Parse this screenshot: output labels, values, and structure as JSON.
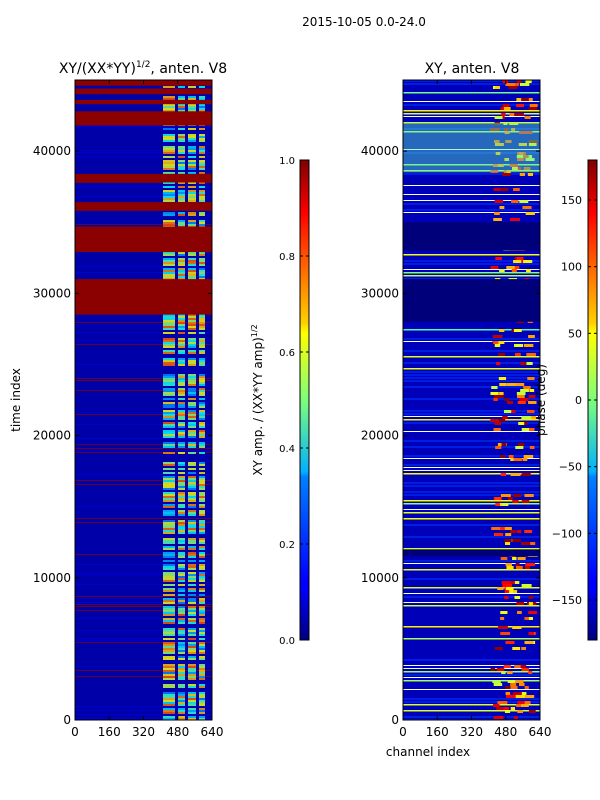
{
  "figure": {
    "suptitle": "2015-10-05 0.0-24.0"
  },
  "chart_data": [
    {
      "type": "heatmap",
      "title_base": "XY/(XX*YY)",
      "title_exp": "1/2",
      "title_suffix": ", anten. V8",
      "xlabel": "",
      "ylabel": "time index",
      "xlim": [
        0,
        640
      ],
      "ylim": [
        0,
        45000
      ],
      "xticks": [
        0,
        160,
        320,
        480,
        640
      ],
      "yticks": [
        0,
        10000,
        20000,
        30000,
        40000
      ],
      "colorbar": {
        "label_base": "XY amp. / (XX*YY amp)",
        "label_exp": "1/2",
        "range": [
          0.0,
          1.0
        ],
        "ticks": [
          "0.0",
          "0.2",
          "0.4",
          "0.6",
          "0.8",
          "1.0"
        ]
      }
    },
    {
      "type": "heatmap",
      "title": "XY, anten. V8",
      "xlabel": "channel index",
      "ylabel": "",
      "xlim": [
        0,
        640
      ],
      "ylim": [
        0,
        45000
      ],
      "xticks": [
        0,
        160,
        320,
        480,
        640
      ],
      "yticks": [
        0,
        10000,
        20000,
        30000,
        40000
      ],
      "colorbar": {
        "label": "phase (deg)",
        "range": [
          -180,
          180
        ],
        "ticks": [
          "−150",
          "−100",
          "−50",
          "0",
          "50",
          "100",
          "150"
        ]
      }
    }
  ]
}
